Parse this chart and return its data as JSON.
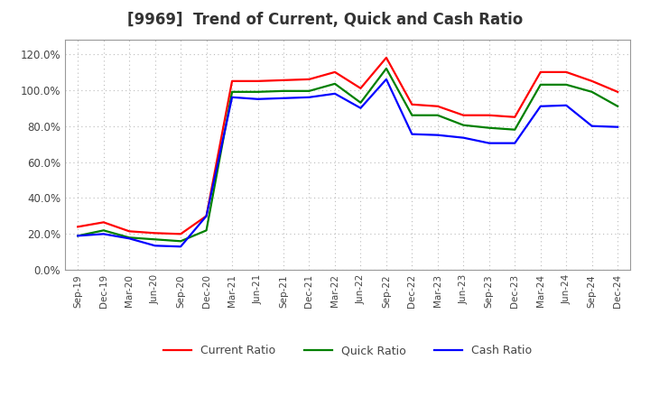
{
  "title": "[9969]  Trend of Current, Quick and Cash Ratio",
  "x_labels": [
    "Sep-19",
    "Dec-19",
    "Mar-20",
    "Jun-20",
    "Sep-20",
    "Dec-20",
    "Mar-21",
    "Jun-21",
    "Sep-21",
    "Dec-21",
    "Mar-22",
    "Jun-22",
    "Sep-22",
    "Dec-22",
    "Mar-23",
    "Jun-23",
    "Sep-23",
    "Dec-23",
    "Mar-24",
    "Jun-24",
    "Sep-24",
    "Dec-24"
  ],
  "current_ratio": [
    24.0,
    26.5,
    21.5,
    20.5,
    20.0,
    30.0,
    105.0,
    105.0,
    105.5,
    106.0,
    110.0,
    101.0,
    118.0,
    92.0,
    91.0,
    86.0,
    86.0,
    85.0,
    110.0,
    110.0,
    105.0,
    99.0
  ],
  "quick_ratio": [
    19.0,
    22.0,
    18.0,
    17.0,
    16.0,
    22.0,
    99.0,
    99.0,
    99.5,
    99.5,
    103.5,
    93.0,
    112.0,
    86.0,
    86.0,
    80.5,
    79.0,
    78.0,
    103.0,
    103.0,
    99.0,
    91.0
  ],
  "cash_ratio": [
    19.0,
    20.0,
    17.5,
    13.5,
    13.0,
    30.0,
    96.0,
    95.0,
    95.5,
    96.0,
    98.0,
    90.0,
    106.0,
    75.5,
    75.0,
    73.5,
    70.5,
    70.5,
    91.0,
    91.5,
    80.0,
    79.5
  ],
  "line_colors": {
    "current": "#ff0000",
    "quick": "#008000",
    "cash": "#0000ff"
  },
  "ylim": [
    0,
    128
  ],
  "yticks": [
    0,
    20,
    40,
    60,
    80,
    100,
    120
  ],
  "background_color": "#ffffff",
  "plot_bg_color": "#ffffff",
  "grid_color": "#bbbbbb",
  "line_width": 1.6,
  "title_fontsize": 12,
  "legend_labels": [
    "Current Ratio",
    "Quick Ratio",
    "Cash Ratio"
  ]
}
